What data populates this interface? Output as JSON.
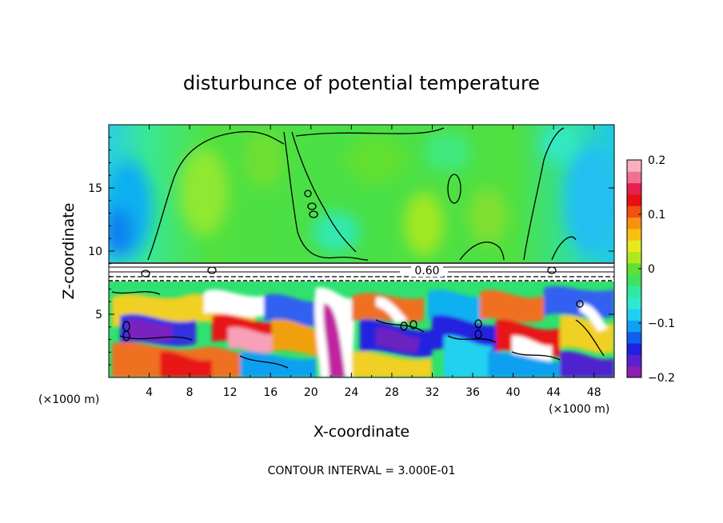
{
  "chart_data": {
    "type": "heatmap",
    "title": "disturbunce of potential temperature",
    "xlabel": "X-coordinate",
    "ylabel": "Z-coordinate",
    "x_unit": "(×1000 m)",
    "x_unit_right": "(×1000 m)",
    "xlim": [
      0,
      50
    ],
    "ylim": [
      0,
      20
    ],
    "x_ticks": [
      4,
      8,
      12,
      16,
      20,
      24,
      28,
      32,
      36,
      40,
      44,
      48
    ],
    "y_ticks": [
      5,
      10,
      15
    ],
    "contour_label": "0.60",
    "contour_interval_text": "CONTOUR INTERVAL = 3.000E-01",
    "colorbar": {
      "range": [
        -0.2,
        0.2
      ],
      "ticks": [
        0.2,
        0.1,
        0,
        -0.1,
        -0.2
      ],
      "tick_labels": [
        "0.2",
        "0.1",
        "0",
        "−0.1",
        "−0.2"
      ],
      "colors": [
        "#8b1fb0",
        "#5b1fd0",
        "#2020e0",
        "#1060f0",
        "#10a0f0",
        "#20d0f0",
        "#30e8d0",
        "#30e8a0",
        "#40e060",
        "#60e030",
        "#b0e820",
        "#e8e820",
        "#f8c010",
        "#f89010",
        "#f05010",
        "#e81010",
        "#e82050",
        "#f07090",
        "#f8b0c0"
      ]
    }
  }
}
